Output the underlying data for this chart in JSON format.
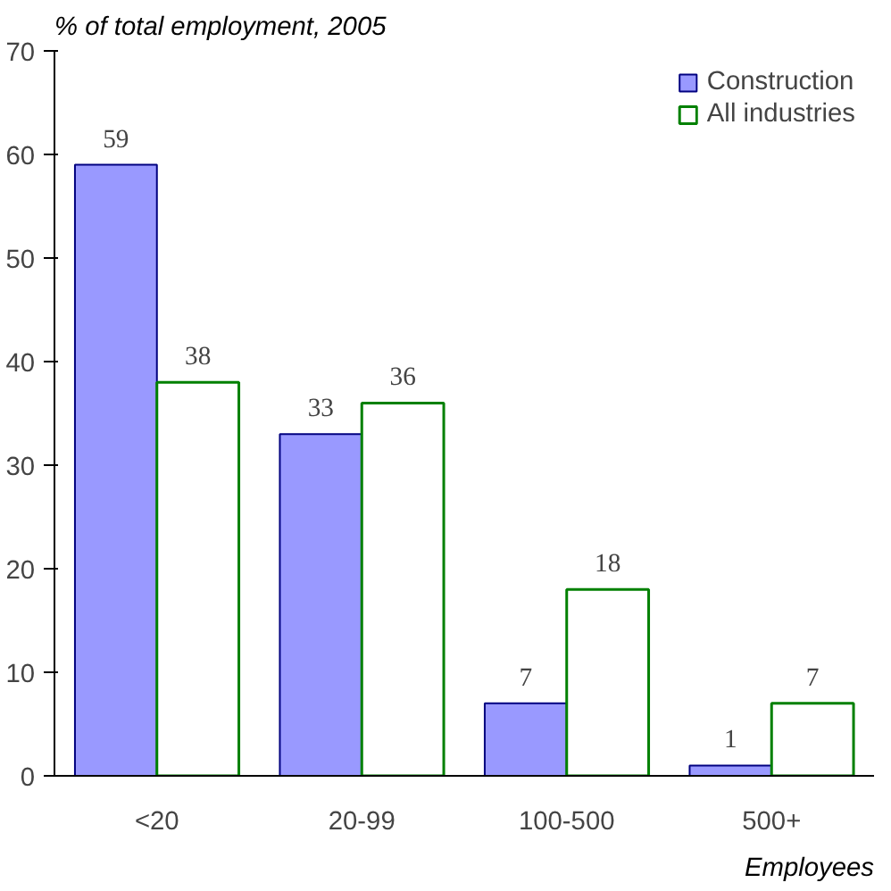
{
  "chart_data": {
    "type": "bar",
    "ylabel": "% of total employment, 2005",
    "xlabel": "Employees",
    "categories": [
      "<20",
      "20-99",
      "100-500",
      "500+"
    ],
    "series": [
      {
        "name": "Construction",
        "color": "#9999ff",
        "values": [
          59,
          33,
          7,
          1
        ]
      },
      {
        "name": "All industries",
        "color": "#008000",
        "values": [
          38,
          36,
          18,
          7
        ]
      }
    ],
    "ylim": [
      0,
      70
    ],
    "yticks": [
      0,
      10,
      20,
      30,
      40,
      50,
      60,
      70
    ],
    "data_labels": true,
    "grid": false,
    "legend": "top right"
  }
}
